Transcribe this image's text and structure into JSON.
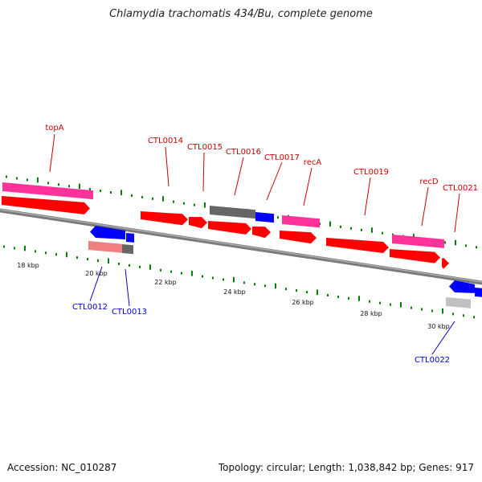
{
  "title": "Chlamydia trachomatis 434/Bu, complete genome",
  "footer": {
    "accession": "Accession: NC_010287",
    "stats": "Topology: circular; Length: 1,038,842 bp; Genes: 917"
  },
  "colors": {
    "cds": "#ff0000",
    "gene": "#ff3399",
    "reverse_cds": "#0000ff",
    "pseudo_or_other": "#666666",
    "tick": "#008000",
    "label_forward": "#cc0000",
    "label_reverse": "#0000cc"
  },
  "genome": {
    "topology": "circular",
    "length_bp": 1038842,
    "gene_count": 917,
    "visible_range_kbp": [
      17,
      31
    ]
  },
  "kbp_labels": [
    "18 kbp",
    "20 kbp",
    "22 kbp",
    "24 kbp",
    "26 kbp",
    "28 kbp",
    "30 kbp"
  ],
  "forward_labels": [
    "topA",
    "CTL0014",
    "CTL0015",
    "CTL0016",
    "CTL0017",
    "recA",
    "CTL0019",
    "recD",
    "CTL0021"
  ],
  "reverse_labels": [
    "CTL0012",
    "CTL0013",
    "CTL0022"
  ]
}
